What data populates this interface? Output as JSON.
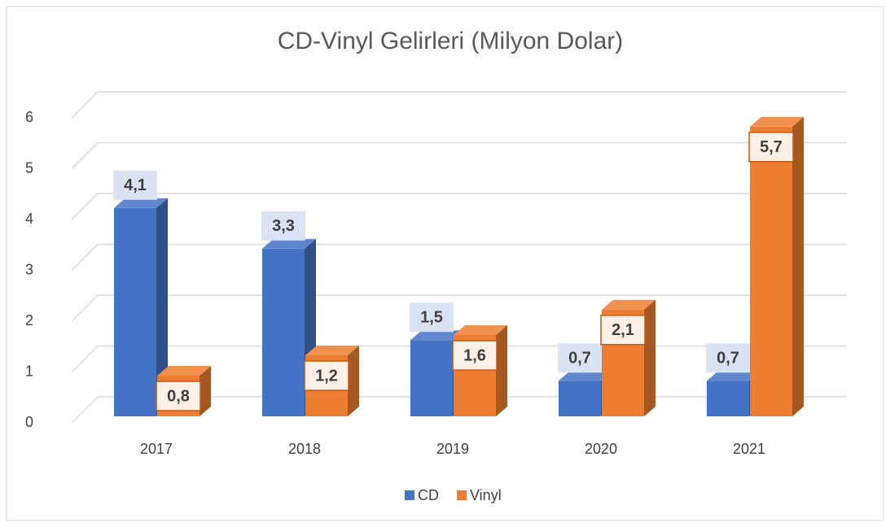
{
  "chart_data": {
    "type": "bar3d",
    "title": "CD-Vinyl Gelirleri (Milyon Dolar)",
    "categories": [
      "2017",
      "2018",
      "2019",
      "2020",
      "2021"
    ],
    "series": [
      {
        "name": "CD",
        "color": "#4472c4",
        "values": [
          4.1,
          3.3,
          1.5,
          0.7,
          0.7
        ],
        "value_labels": [
          "4,1",
          "3,3",
          "1,5",
          "0,7",
          "0,7"
        ]
      },
      {
        "name": "Vinyl",
        "color": "#ed7d31",
        "values": [
          0.8,
          1.2,
          1.6,
          2.1,
          5.7
        ],
        "value_labels": [
          "0,8",
          "1,2",
          "1,6",
          "2,1",
          "5,7"
        ]
      }
    ],
    "ylim": [
      0,
      6
    ],
    "yticks": [
      0,
      1,
      2,
      3,
      4,
      5,
      6
    ],
    "grid": true,
    "legend": "bottom"
  }
}
